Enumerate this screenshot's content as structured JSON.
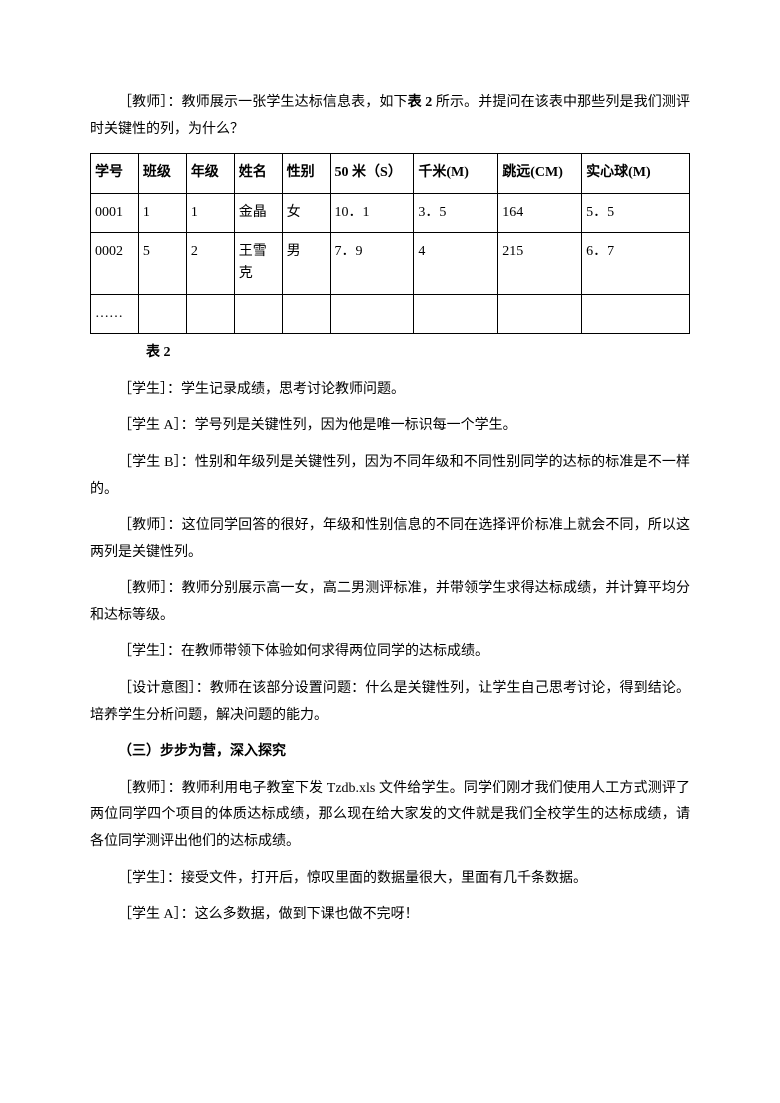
{
  "intro": {
    "p1_pre": "［教师］：教师展示一张学生达标信息表，如下",
    "p1_bold": "表 2",
    "p1_post": " 所示。并提问在该表中那些列是我们测评时关键性的列，为什么？"
  },
  "table": {
    "headers": [
      "学号",
      "班级",
      "年级",
      "姓名",
      "性别",
      "50 米（S）",
      "千米(M)",
      "跳远(CM)",
      "实心球(M)"
    ],
    "rows": [
      [
        "0001",
        "1",
        "1",
        "金晶",
        "女",
        "10．1",
        "3．5",
        "164",
        "5．5"
      ],
      [
        "0002",
        "5",
        "2",
        "王雪克",
        "男",
        "7．9",
        "4",
        "215",
        "6．7"
      ],
      [
        "……",
        "",
        "",
        "",
        "",
        "",
        "",
        "",
        ""
      ]
    ],
    "caption": "表 2"
  },
  "body": {
    "p2": "［学生］：学生记录成绩，思考讨论教师问题。",
    "p3": "［学生 A］：学号列是关键性列，因为他是唯一标识每一个学生。",
    "p4": "［学生 B］：性别和年级列是关键性列，因为不同年级和不同性别同学的达标的标准是不一样的。",
    "p5": "［教师］：这位同学回答的很好，年级和性别信息的不同在选择评价标准上就会不同，所以这两列是关键性列。",
    "p6": "［教师］：教师分别展示高一女，高二男测评标准，并带领学生求得达标成绩，并计算平均分和达标等级。",
    "p7": "［学生］：在教师带领下体验如何求得两位同学的达标成绩。",
    "p8": "［设计意图］：教师在该部分设置问题：什么是关键性列，让学生自己思考讨论，得到结论。培养学生分析问题，解决问题的能力。",
    "section": "（三）步步为营，深入探究",
    "p9": "［教师］：教师利用电子教室下发 Tzdb.xls 文件给学生。同学们刚才我们使用人工方式测评了两位同学四个项目的体质达标成绩，那么现在给大家发的文件就是我们全校学生的达标成绩，请各位同学测评出他们的达标成绩。",
    "p10": "［学生］：接受文件，打开后，惊叹里面的数据量很大，里面有几千条数据。",
    "p11": "［学生 A］：这么多数据，做到下课也做不完呀！"
  }
}
